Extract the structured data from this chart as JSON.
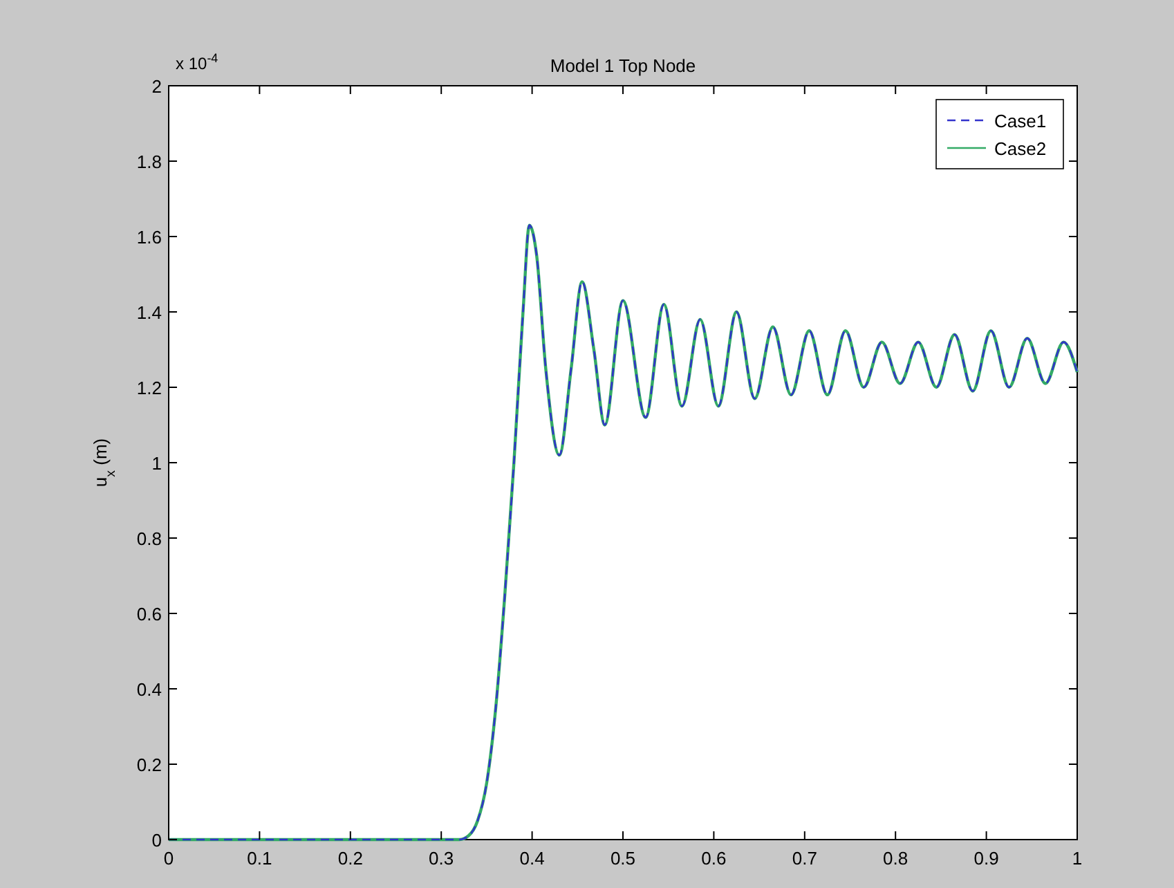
{
  "chart_data": {
    "type": "line",
    "title": "Model 1 Top Node",
    "ylabel": "u$_{x}$ (m)",
    "annotations": [
      "x 10$^{-4}$"
    ],
    "xlim": [
      0,
      1
    ],
    "ylim": [
      0,
      2
    ],
    "xticks": [
      0,
      0.1,
      0.2,
      0.3,
      0.4,
      0.5,
      0.6,
      0.7,
      0.8,
      0.9,
      1
    ],
    "yticks": [
      0,
      0.2,
      0.4,
      0.6,
      0.8,
      1,
      1.2,
      1.4,
      1.6,
      1.8,
      2
    ],
    "x": [
      0,
      0.32,
      0.33,
      0.34,
      0.35,
      0.36,
      0.37,
      0.38,
      0.39,
      0.397,
      0.405,
      0.415,
      0.43,
      0.443,
      0.455,
      0.468,
      0.48,
      0.5,
      0.525,
      0.545,
      0.565,
      0.585,
      0.605,
      0.625,
      0.645,
      0.665,
      0.685,
      0.705,
      0.725,
      0.745,
      0.765,
      0.785,
      0.805,
      0.825,
      0.845,
      0.865,
      0.885,
      0.905,
      0.925,
      0.945,
      0.965,
      0.985,
      1
    ],
    "series": [
      {
        "name": "Case1",
        "color": "#3333cc",
        "line_style": "dashed",
        "values": [
          0,
          0,
          0.01,
          0.05,
          0.15,
          0.35,
          0.65,
          1,
          1.4,
          1.63,
          1.55,
          1.25,
          1.02,
          1.25,
          1.48,
          1.3,
          1.1,
          1.43,
          1.12,
          1.42,
          1.15,
          1.38,
          1.15,
          1.4,
          1.17,
          1.36,
          1.18,
          1.35,
          1.18,
          1.35,
          1.2,
          1.32,
          1.21,
          1.32,
          1.2,
          1.34,
          1.19,
          1.35,
          1.2,
          1.33,
          1.21,
          1.32,
          1.24
        ]
      },
      {
        "name": "Case2",
        "color": "#33aa66",
        "line_style": "solid",
        "values": [
          0,
          0,
          0.01,
          0.05,
          0.15,
          0.35,
          0.65,
          1,
          1.4,
          1.63,
          1.55,
          1.25,
          1.02,
          1.25,
          1.48,
          1.3,
          1.1,
          1.43,
          1.12,
          1.42,
          1.15,
          1.38,
          1.15,
          1.4,
          1.17,
          1.36,
          1.18,
          1.35,
          1.18,
          1.35,
          1.2,
          1.32,
          1.21,
          1.32,
          1.2,
          1.34,
          1.19,
          1.35,
          1.2,
          1.33,
          1.21,
          1.32,
          1.24
        ]
      }
    ],
    "legend": "top right"
  }
}
